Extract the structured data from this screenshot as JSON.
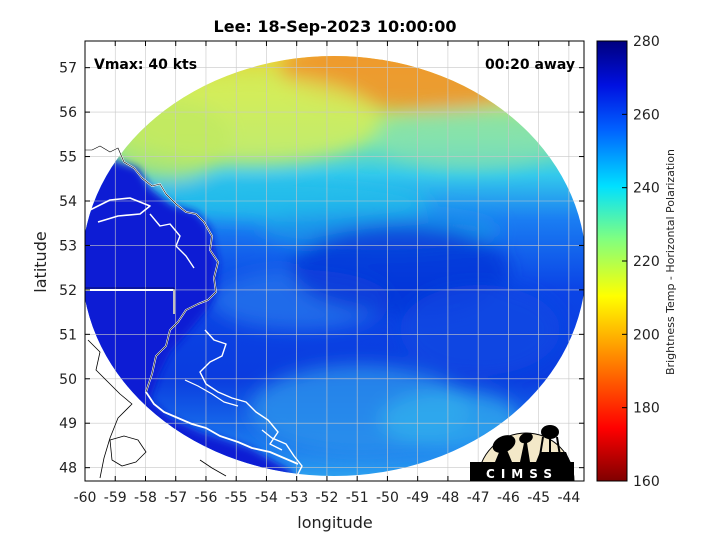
{
  "title": "Lee: 18-Sep-2023 10:00:00",
  "vmax_label": "Vmax: 40 kts",
  "time_away_label": "00:20 away",
  "xlabel": "longitude",
  "ylabel": "latitude",
  "x_ticks": [
    "-60",
    "-59",
    "-58",
    "-57",
    "-56",
    "-55",
    "-54",
    "-53",
    "-52",
    "-51",
    "-50",
    "-49",
    "-48",
    "-47",
    "-46",
    "-45",
    "-44"
  ],
  "y_ticks": [
    "48",
    "49",
    "50",
    "51",
    "52",
    "53",
    "54",
    "55",
    "56",
    "57"
  ],
  "colorbar": {
    "label": "Brightness Temp - Horizontal Polarization",
    "ticks": [
      "160",
      "180",
      "200",
      "220",
      "240",
      "260",
      "280"
    ],
    "range": [
      160,
      280
    ]
  },
  "logo_text": "CIMSS",
  "map_extent": {
    "lon": [
      -60,
      -43.5
    ],
    "lat": [
      47.7,
      57.6
    ]
  }
}
